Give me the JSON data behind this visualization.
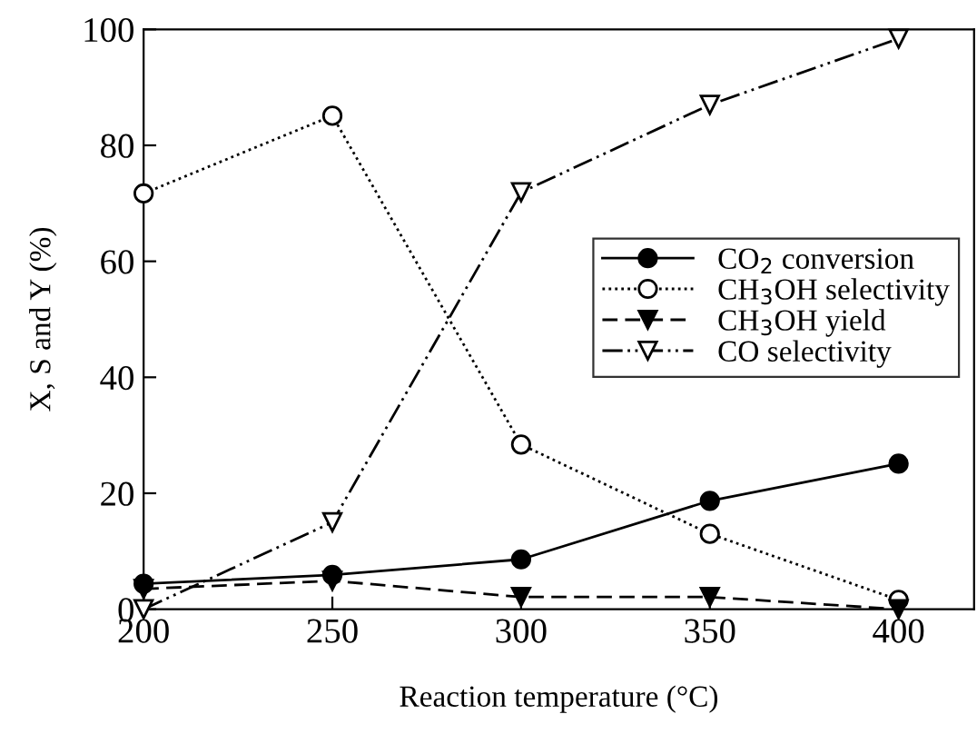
{
  "chart_data": {
    "type": "line",
    "xlabel": "Reaction temperature (°C)",
    "ylabel": "X, S and Y (%)",
    "x": [
      200,
      250,
      300,
      350,
      400
    ],
    "series": [
      {
        "name": "CO$_{2}$ conversion",
        "color": "#000000",
        "values": [
          4.4,
          5.9,
          8.6,
          18.7,
          25.1
        ],
        "marker": "circle",
        "line_style": "solid"
      },
      {
        "name": "CH$_{3}$OH selectivity",
        "color": "#000000",
        "values": [
          71.7,
          85.1,
          28.4,
          13.0,
          1.6
        ],
        "marker": "circle",
        "line_style": "dotted"
      },
      {
        "name": "CH$_{3}$OH yield",
        "color": "#000000",
        "values": [
          3.5,
          4.9,
          2.1,
          2.1,
          0
        ],
        "marker": "triangle",
        "line_style": "dashed"
      },
      {
        "name": "CO selectivity",
        "color": "#000000",
        "values": [
          0,
          15,
          71.9,
          87,
          98.4
        ],
        "marker": "triangle",
        "line_style": "dashdot"
      }
    ],
    "xlim": [
      200,
      420
    ],
    "ylim": [
      0,
      100
    ],
    "xticks": [
      200,
      250,
      300,
      350,
      400
    ],
    "yticks": [
      0,
      20,
      40,
      60,
      80,
      100
    ],
    "grid": false,
    "legend": "right"
  }
}
